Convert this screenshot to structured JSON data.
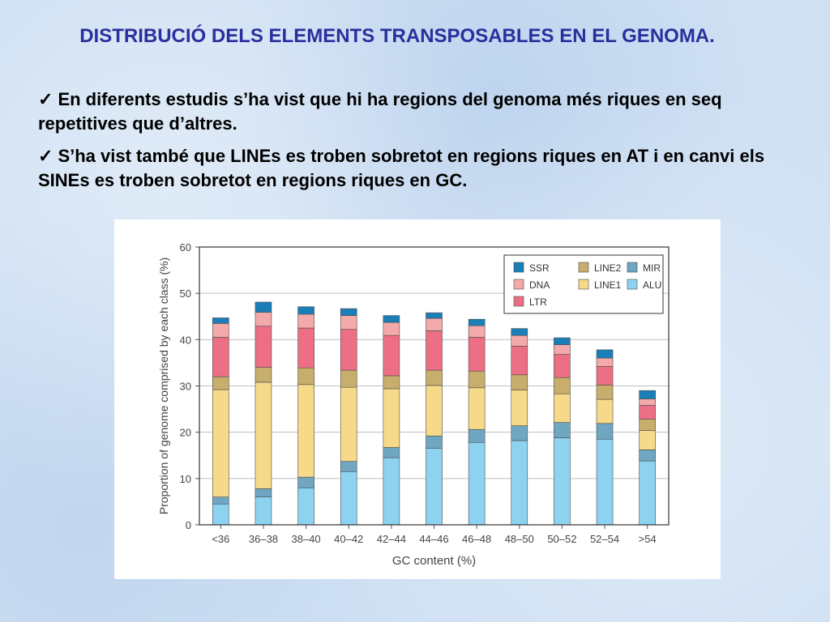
{
  "slide": {
    "title": "DISTRIBUCIÓ DELS ELEMENTS TRANSPOSABLES EN EL GENOMA.",
    "bullets": [
      "En diferents estudis s’ha vist que hi ha regions del genoma més riques en seq repetitives que d’altres.",
      "S’ha vist també que LINEs es troben sobretot en regions riques en AT i en canvi els SINEs es troben sobretot en regions riques en GC."
    ],
    "check_glyph": "✓"
  },
  "chart_data": {
    "type": "bar",
    "stacked": true,
    "categories": [
      "<36",
      "36–38",
      "38–40",
      "40–42",
      "42–44",
      "44–46",
      "46–48",
      "48–50",
      "50–52",
      "52–54",
      ">54"
    ],
    "xlabel": "GC content (%)",
    "ylabel": "Proportion of genome comprised by each class (%)",
    "ylim": [
      0,
      60
    ],
    "yticks": [
      0,
      10,
      20,
      30,
      40,
      50,
      60
    ],
    "grid": true,
    "legend_position": "top-right",
    "series": [
      {
        "name": "ALU",
        "color": "#8dd3f0",
        "values": [
          4.5,
          6.0,
          8.0,
          11.5,
          14.5,
          16.5,
          17.8,
          18.2,
          18.8,
          18.5,
          13.8
        ]
      },
      {
        "name": "MIR",
        "color": "#6fa7c2",
        "values": [
          1.5,
          1.8,
          2.3,
          2.2,
          2.2,
          2.7,
          2.8,
          3.2,
          3.3,
          3.4,
          2.4
        ]
      },
      {
        "name": "LINE1",
        "color": "#f7d98a",
        "values": [
          23.2,
          23.0,
          20.0,
          16.0,
          12.7,
          10.9,
          9.0,
          7.7,
          6.2,
          5.2,
          4.2
        ]
      },
      {
        "name": "LINE2",
        "color": "#c7ae6c",
        "values": [
          2.8,
          3.2,
          3.6,
          3.7,
          2.8,
          3.3,
          3.6,
          3.3,
          3.5,
          3.1,
          2.4
        ]
      },
      {
        "name": "LTR",
        "color": "#ec6f86",
        "values": [
          8.5,
          8.9,
          8.6,
          8.8,
          8.7,
          8.5,
          7.3,
          6.2,
          5.0,
          4.0,
          3.0
        ]
      },
      {
        "name": "DNA",
        "color": "#f4a9aa",
        "values": [
          3.0,
          3.0,
          3.0,
          3.0,
          2.8,
          2.7,
          2.5,
          2.3,
          2.1,
          1.8,
          1.4
        ]
      },
      {
        "name": "SSR",
        "color": "#1a7fb8",
        "values": [
          1.2,
          2.2,
          1.6,
          1.5,
          1.5,
          1.2,
          1.4,
          1.5,
          1.5,
          1.8,
          1.8
        ]
      }
    ],
    "legend_order": [
      [
        "SSR",
        "LINE2",
        "MIR"
      ],
      [
        "DNA",
        "LINE1",
        "ALU"
      ],
      [
        "LTR"
      ]
    ]
  }
}
